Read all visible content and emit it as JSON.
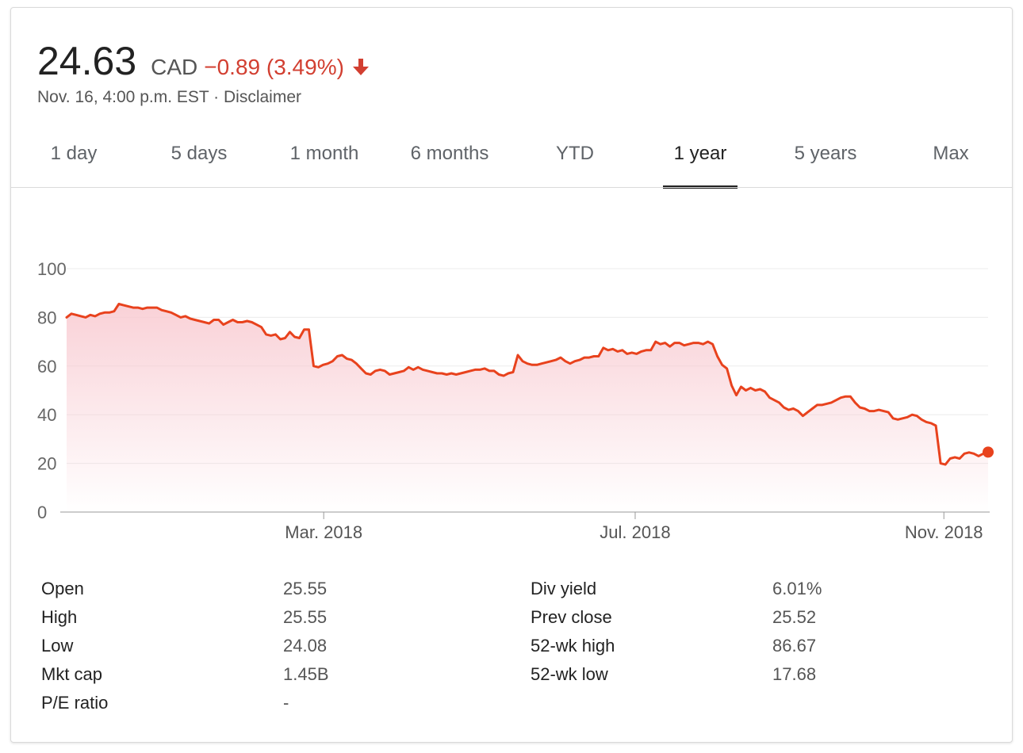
{
  "quote": {
    "price": "24.63",
    "currency": "CAD",
    "change": "−0.89 (3.49%)",
    "direction": "down",
    "timestamp_line": "Nov. 16, 4:00 p.m. EST · Disclaimer",
    "down_color": "#d23f31"
  },
  "tabs": [
    {
      "label": "1 day",
      "active": false
    },
    {
      "label": "5 days",
      "active": false
    },
    {
      "label": "1 month",
      "active": false
    },
    {
      "label": "6 months",
      "active": false
    },
    {
      "label": "YTD",
      "active": false
    },
    {
      "label": "1 year",
      "active": true
    },
    {
      "label": "5 years",
      "active": false
    },
    {
      "label": "Max",
      "active": false
    }
  ],
  "chart_data": {
    "type": "area",
    "title": "",
    "xlabel": "",
    "ylabel": "",
    "ylim": [
      0,
      100
    ],
    "y_ticks": [
      "0",
      "20",
      "40",
      "60",
      "80",
      "100"
    ],
    "x_ticks": [
      "Mar. 2018",
      "Jul. 2018",
      "Nov. 2018"
    ],
    "grid": true,
    "line_color": "#e8421d",
    "fill_color": "#f8c9d0",
    "series": [
      {
        "values": [
          80,
          81.5,
          81,
          80.5,
          80,
          81,
          80.5,
          81.5,
          82,
          82,
          82.5,
          85.5,
          85,
          84.5,
          84,
          84,
          83.5,
          84,
          84,
          84,
          83,
          82.5,
          82,
          81,
          80,
          80.5,
          79.5,
          79,
          78.5,
          78,
          77.5,
          79,
          79,
          77,
          78,
          79,
          78,
          78,
          78.5,
          78,
          77,
          76,
          73,
          72.5,
          73,
          71,
          71.5,
          74,
          72,
          71.5,
          75,
          75,
          60,
          59.5,
          60.5,
          61,
          62,
          64,
          64.5,
          63,
          62.5,
          61,
          59,
          57,
          56.5,
          58,
          58.5,
          58,
          56.5,
          57,
          57.5,
          58,
          59.5,
          58.5,
          59.5,
          58.5,
          58,
          57.5,
          57,
          57,
          56.5,
          57,
          56.5,
          57,
          57.5,
          58,
          58.5,
          58.5,
          59,
          58,
          58,
          56.5,
          56,
          57,
          57.5,
          64.5,
          62,
          61,
          60.5,
          60.5,
          61,
          61.5,
          62,
          62.5,
          63.5,
          62,
          61,
          62,
          62.5,
          63.5,
          63.5,
          64,
          64,
          67.5,
          66.5,
          67,
          66,
          66.5,
          65,
          65.5,
          65,
          66,
          66.5,
          66.5,
          70,
          69,
          69.5,
          68,
          69.5,
          69.5,
          68.5,
          69,
          69.5,
          69.5,
          69,
          70,
          69,
          64,
          60.5,
          59,
          52,
          48,
          51.5,
          50,
          51,
          50,
          50.5,
          49.5,
          47,
          46,
          45,
          43,
          42,
          42.5,
          41.5,
          39.5,
          41,
          42.5,
          44,
          44,
          44.5,
          45,
          46,
          47,
          47.5,
          47.5,
          45,
          43,
          42.5,
          41.5,
          41.5,
          42,
          41.5,
          41,
          38.5,
          38,
          38.5,
          39,
          40,
          39.5,
          38,
          37,
          36.5,
          35.5,
          20,
          19.5,
          22,
          22.5,
          22,
          24,
          24.5,
          24,
          23,
          24,
          24.63
        ]
      }
    ],
    "last_point_marker": true
  },
  "stats": {
    "left": [
      {
        "label": "Open",
        "value": "25.55"
      },
      {
        "label": "High",
        "value": "25.55"
      },
      {
        "label": "Low",
        "value": "24.08"
      },
      {
        "label": "Mkt cap",
        "value": "1.45B"
      },
      {
        "label": "P/E ratio",
        "value": "-"
      }
    ],
    "right": [
      {
        "label": "Div yield",
        "value": "6.01%"
      },
      {
        "label": "Prev close",
        "value": "25.52"
      },
      {
        "label": "52-wk high",
        "value": "86.67"
      },
      {
        "label": "52-wk low",
        "value": "17.68"
      }
    ]
  }
}
